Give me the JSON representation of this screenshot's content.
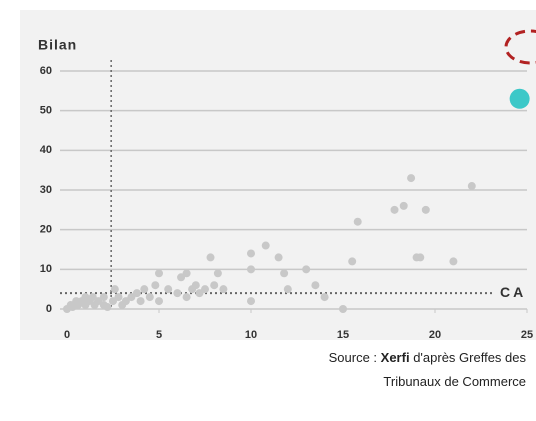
{
  "chart_data": {
    "type": "scatter",
    "y_label": "Bilan",
    "x_label": "CA",
    "xlim": [
      0,
      25
    ],
    "ylim": [
      0,
      60
    ],
    "xticks": [
      0,
      5,
      10,
      15,
      20,
      25
    ],
    "yticks": [
      0,
      10,
      20,
      30,
      40,
      50,
      60
    ],
    "grid": true,
    "reference_x": 2.4,
    "reference_y": 4,
    "series": [
      {
        "color": "#c8c8c8",
        "x": [
          0,
          0.2,
          0.3,
          0.5,
          0.6,
          0.8,
          1,
          1,
          1.2,
          1.4,
          1.5,
          1.7,
          2,
          2,
          2.2,
          2.5,
          2.6,
          2.8,
          3,
          3.2,
          3.5,
          3.8,
          4,
          4.2,
          4.5,
          4.8,
          5,
          5,
          5.5,
          6,
          6.2,
          6.5,
          6.5,
          6.8,
          7,
          7.2,
          7.5,
          7.8,
          8,
          8.2,
          8.5,
          10,
          10,
          10,
          10.8,
          11.5,
          11.8,
          12,
          13,
          13.5,
          14,
          15,
          15.5,
          15.8,
          17.8,
          18.3,
          18.7,
          19,
          19.2,
          19.5,
          21,
          22
        ],
        "values": [
          0,
          1,
          0.5,
          2,
          1,
          2,
          3,
          1,
          2,
          3,
          1,
          2,
          1,
          3,
          0.5,
          2,
          5,
          3,
          1,
          2,
          3,
          4,
          2,
          5,
          3,
          6,
          9,
          2,
          5,
          4,
          8,
          9,
          3,
          5,
          6,
          4,
          5,
          13,
          6,
          9,
          5,
          14,
          10,
          2,
          16,
          13,
          9,
          5,
          10,
          6,
          3,
          0,
          12,
          22,
          25,
          26,
          33,
          13,
          13,
          25,
          12,
          31
        ]
      },
      {
        "color": "#3cc8c8",
        "x": [
          24.6
        ],
        "values": [
          53
        ]
      }
    ],
    "source": {
      "prefix": "Source :",
      "brand": "Xerfi",
      "rest": "d'après Greffes des Tribunaux de Commerce"
    }
  }
}
